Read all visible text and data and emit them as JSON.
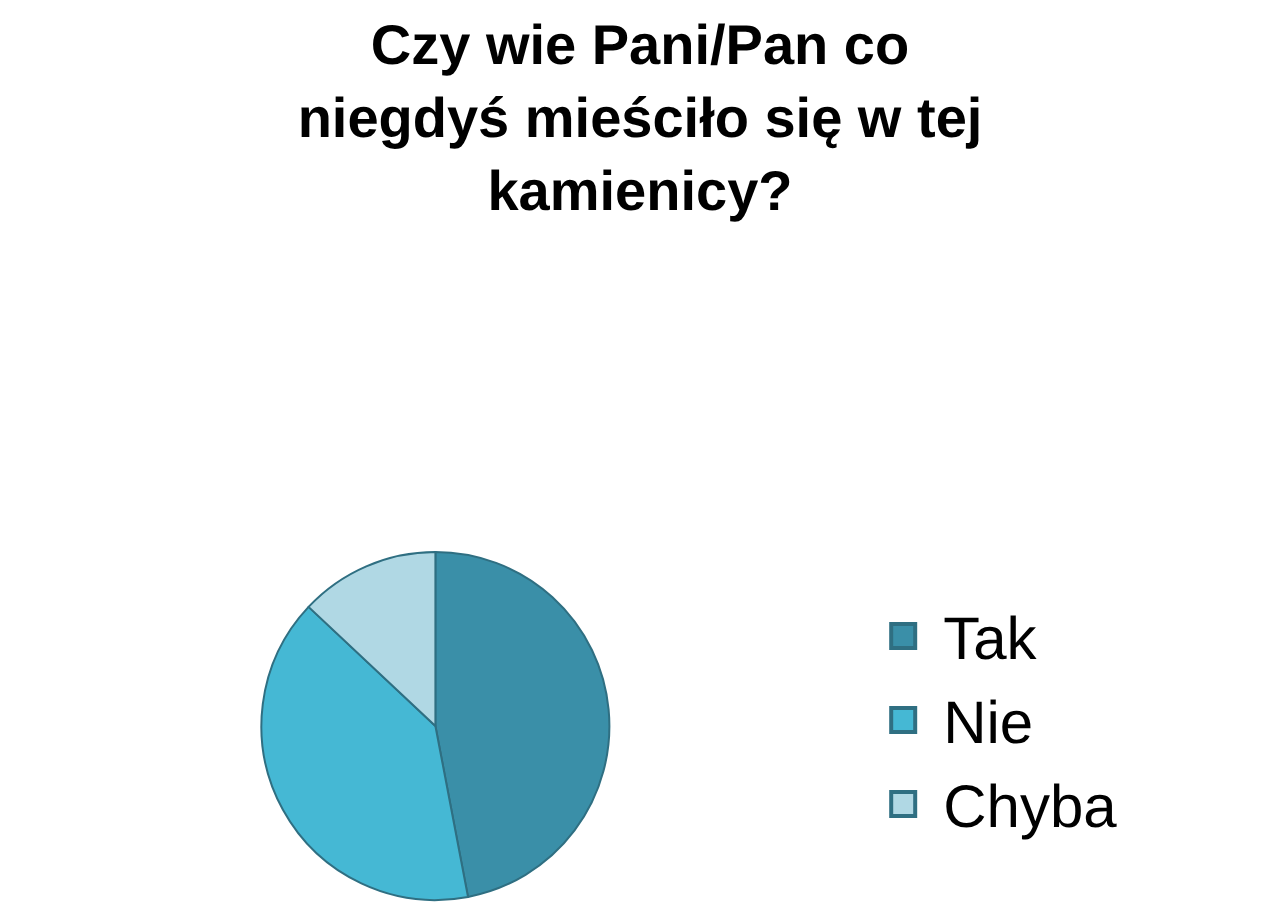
{
  "chart_data": {
    "type": "pie",
    "title": "Czy wie Pani/Pan co\nniegdyś mieściło się w tej\nkamienicy?",
    "categories": [
      "Tak",
      "Nie",
      "Chyba"
    ],
    "values": [
      47,
      40,
      13
    ],
    "colors": [
      "#3a8fa8",
      "#45b8d4",
      "#b0d8e4"
    ],
    "legend": "right"
  }
}
